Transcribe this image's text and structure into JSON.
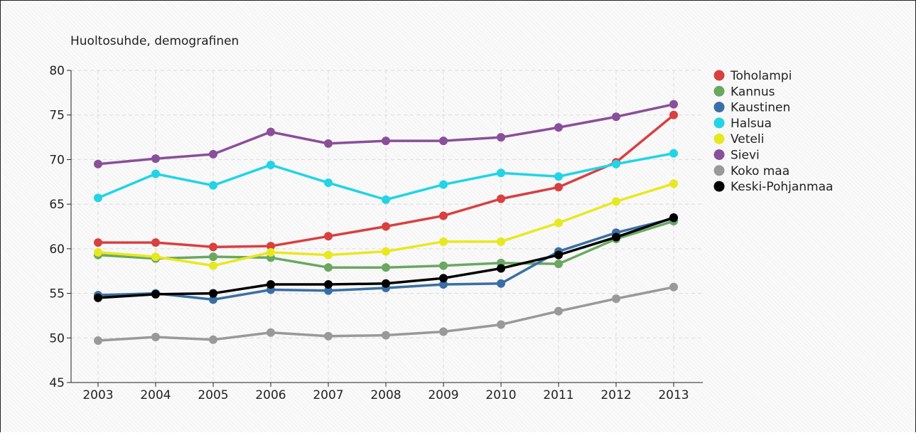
{
  "chart_data": {
    "type": "line",
    "title": "Huoltosuhde, demografinen",
    "xlabel": "",
    "ylabel": "",
    "ylim": [
      45,
      80
    ],
    "yticks": [
      45,
      50,
      55,
      60,
      65,
      70,
      75,
      80
    ],
    "grid": true,
    "legend_position": "top-right",
    "categories": [
      "2003",
      "2004",
      "2005",
      "2006",
      "2007",
      "2008",
      "2009",
      "2010",
      "2011",
      "2012",
      "2013"
    ],
    "series": [
      {
        "name": "Toholampi",
        "color": "#d94040",
        "values": [
          60.7,
          60.7,
          60.2,
          60.3,
          61.4,
          62.5,
          63.7,
          65.6,
          66.9,
          69.7,
          75.0
        ]
      },
      {
        "name": "Kannus",
        "color": "#6aa861",
        "values": [
          59.3,
          58.9,
          59.1,
          59.0,
          57.9,
          57.9,
          58.1,
          58.4,
          58.3,
          61.1,
          63.1
        ]
      },
      {
        "name": "Kaustinen",
        "color": "#3a6fa5",
        "values": [
          54.8,
          55.0,
          54.3,
          55.4,
          55.3,
          55.6,
          56.0,
          56.1,
          59.7,
          61.8,
          63.4
        ]
      },
      {
        "name": "Halsua",
        "color": "#22d4e6",
        "values": [
          65.7,
          68.4,
          67.1,
          69.4,
          67.4,
          65.5,
          67.2,
          68.5,
          68.1,
          69.5,
          70.7
        ]
      },
      {
        "name": "Veteli",
        "color": "#e8e820",
        "values": [
          59.6,
          59.1,
          58.1,
          59.6,
          59.3,
          59.7,
          60.8,
          60.8,
          62.9,
          65.3,
          67.3
        ]
      },
      {
        "name": "Sievi",
        "color": "#8a4f9a",
        "values": [
          69.5,
          70.1,
          70.6,
          73.1,
          71.8,
          72.1,
          72.1,
          72.5,
          73.6,
          74.8,
          76.2
        ]
      },
      {
        "name": "Koko maa",
        "color": "#999999",
        "values": [
          49.7,
          50.1,
          49.8,
          50.6,
          50.2,
          50.3,
          50.7,
          51.5,
          53.0,
          54.4,
          55.7
        ]
      },
      {
        "name": "Keski-Pohjanmaa",
        "color": "#000000",
        "values": [
          54.5,
          54.9,
          55.0,
          56.0,
          56.0,
          56.1,
          56.7,
          57.8,
          59.3,
          61.3,
          63.5
        ]
      }
    ]
  }
}
